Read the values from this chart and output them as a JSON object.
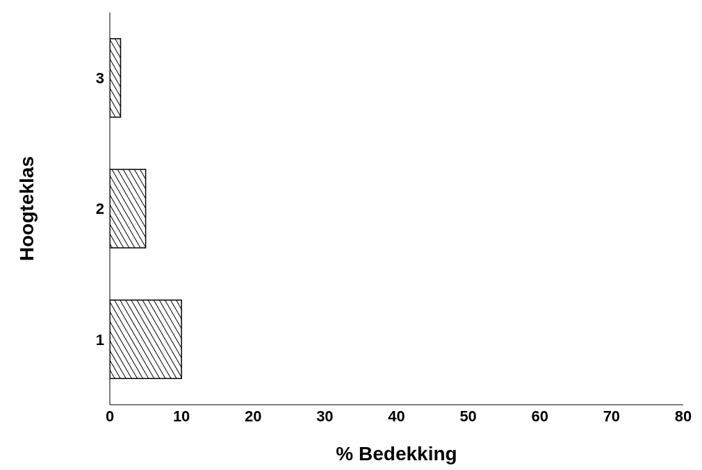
{
  "chart_data": {
    "type": "bar",
    "orientation": "horizontal",
    "xlabel": "% Bedekking",
    "ylabel": "Hoogteklas",
    "categories": [
      "3",
      "2",
      "1"
    ],
    "values": [
      1.5,
      5,
      10
    ],
    "color": "#000000",
    "xlim": [
      0,
      80
    ],
    "xticks": [
      0,
      10,
      20,
      30,
      40,
      50,
      60,
      70,
      80
    ]
  }
}
